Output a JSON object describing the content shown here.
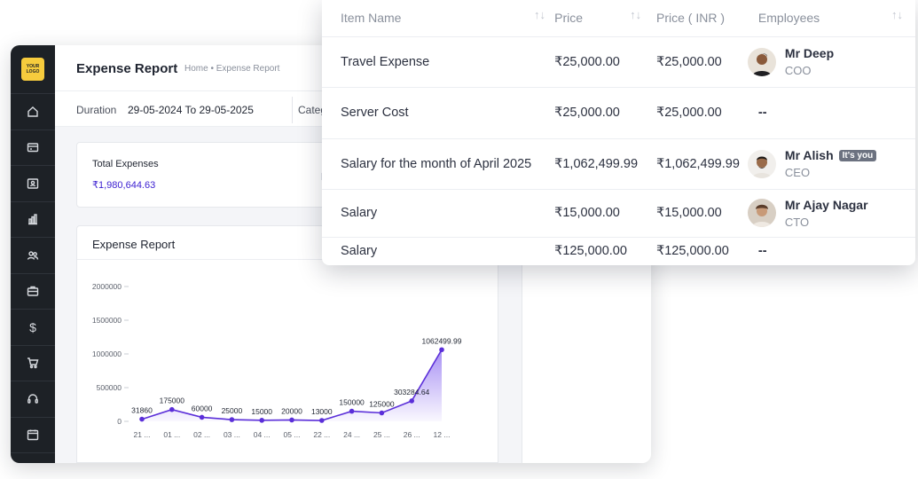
{
  "app": {
    "logo_text": "YOUR LOGO",
    "page_title": "Expense Report",
    "breadcrumb": "Home • Expense Report",
    "sidebar_icons": [
      "home-icon",
      "wallet-icon",
      "contact-card-icon",
      "building-icon",
      "users-icon",
      "briefcase-icon",
      "dollar-icon",
      "cart-icon",
      "headset-icon",
      "calendar-icon"
    ]
  },
  "filters": {
    "duration_label": "Duration",
    "duration_value": "29-05-2024 To 29-05-2025",
    "category_label": "Categ"
  },
  "summary": {
    "total_label": "Total Expenses",
    "total_value": "₹1,980,644.63"
  },
  "chart_card": {
    "title": "Expense Report"
  },
  "chart_data": {
    "type": "area",
    "categories": [
      "21 ...",
      "01 ...",
      "02 ...",
      "03 ...",
      "04 ...",
      "05 ...",
      "22 ...",
      "24 ...",
      "25 ...",
      "26 ...",
      "12 ..."
    ],
    "values": [
      31860,
      175000,
      60000,
      25000,
      15000,
      20000,
      13000,
      150000,
      125000,
      303284.64,
      1062499.99
    ],
    "data_labels": [
      "31860",
      "175000",
      "60000",
      "25000",
      "15000",
      "20000",
      "13000",
      "150000",
      "125000",
      "303284.64",
      "1062499.99"
    ],
    "yticks": [
      0,
      500000,
      1000000,
      1500000,
      2000000
    ],
    "ytick_labels": [
      "0",
      "500000",
      "1000000",
      "1500000",
      "2000000"
    ],
    "ylim": [
      0,
      2000000
    ],
    "line_color": "#5b2fd9",
    "fill_color": "#8b6cf0"
  },
  "table": {
    "headers": [
      "Item Name",
      "Price",
      "Price ( INR )",
      "Employees"
    ],
    "sort_icon": "↑↓",
    "rows": [
      {
        "item": "Travel Expense",
        "price": "₹25,000.00",
        "price_inr": "₹25,000.00",
        "emp_name": "Mr Deep",
        "emp_role": "COO",
        "badge": "",
        "no_emp": ""
      },
      {
        "item": "Server Cost",
        "price": "₹25,000.00",
        "price_inr": "₹25,000.00",
        "emp_name": "",
        "emp_role": "",
        "badge": "",
        "no_emp": "--"
      },
      {
        "item": "Salary for the month of April 2025",
        "price": "₹1,062,499.99",
        "price_inr": "₹1,062,499.99",
        "emp_name": "Mr Alish",
        "emp_role": "CEO",
        "badge": "It's you",
        "no_emp": ""
      },
      {
        "item": "Salary",
        "price": "₹15,000.00",
        "price_inr": "₹15,000.00",
        "emp_name": "Mr Ajay Nagar",
        "emp_role": "CTO",
        "badge": "",
        "no_emp": ""
      },
      {
        "item": "Salary",
        "price": "₹125,000.00",
        "price_inr": "₹125,000.00",
        "emp_name": "",
        "emp_role": "",
        "badge": "",
        "no_emp": "--"
      }
    ]
  }
}
